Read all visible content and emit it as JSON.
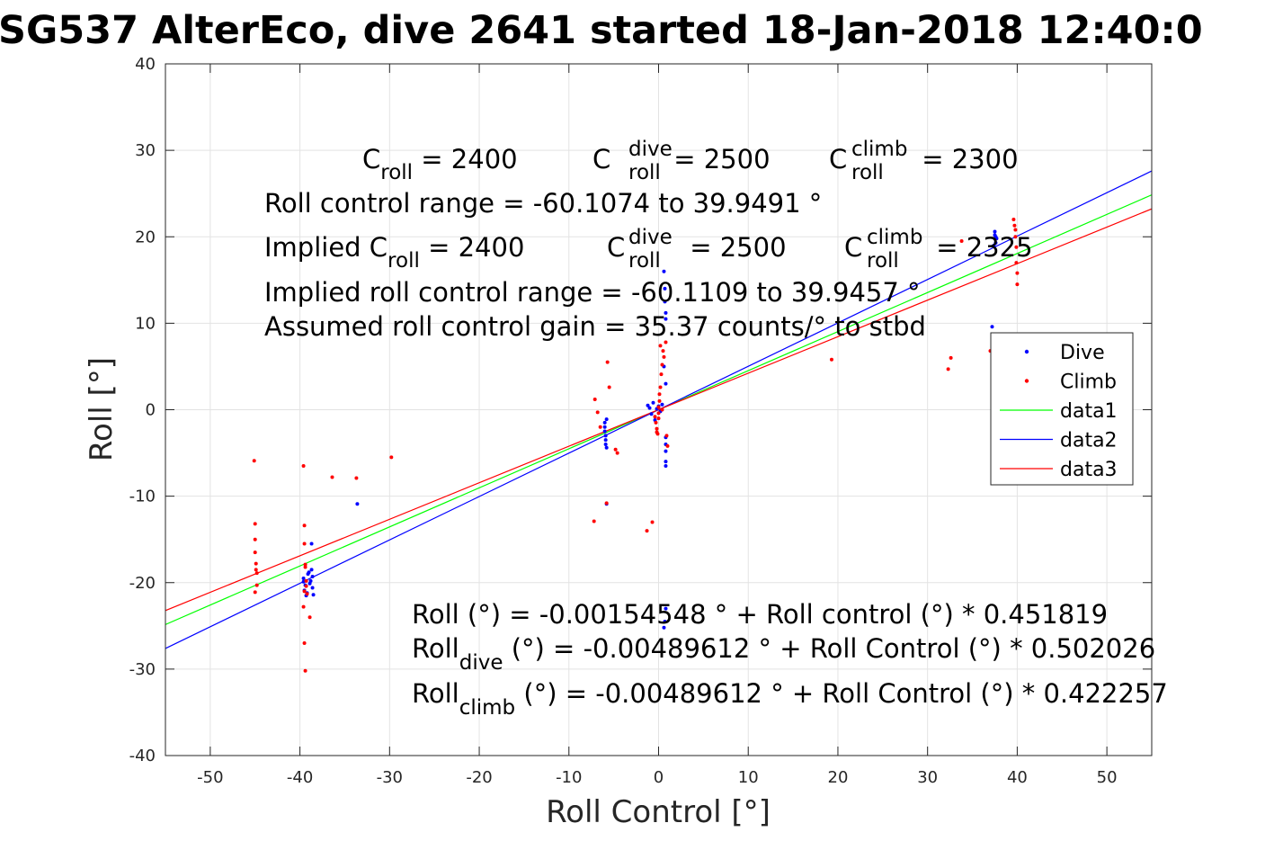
{
  "chart_data": {
    "type": "scatter",
    "title": "SG537 AlterEco, dive 2641 started 18-Jan-2018 12:40:0",
    "xlabel": "Roll Control [°]",
    "ylabel": "Roll [°]",
    "xlim": [
      -55,
      55
    ],
    "ylim": [
      -40,
      40
    ],
    "xticks": [
      -50,
      -40,
      -30,
      -20,
      -10,
      0,
      10,
      20,
      30,
      40,
      50
    ],
    "yticks": [
      -40,
      -30,
      -20,
      -10,
      0,
      10,
      20,
      30,
      40
    ],
    "grid": true,
    "legend_position": "right",
    "series": [
      {
        "name": "Dive",
        "kind": "points",
        "color": "#0000ff",
        "x": [
          -39.6,
          -39.4,
          -39.2,
          -39.0,
          -38.8,
          -38.6,
          -38.5,
          -39.5,
          -39.1,
          -38.7,
          -39.3,
          -38.9,
          -38.6,
          -39.6,
          -38.7,
          -33.6,
          -6.0,
          -6.0,
          -6.0,
          -5.9,
          -5.9,
          -5.9,
          -5.8,
          -5.8,
          -5.8,
          -1.2,
          -1.0,
          -0.8,
          -0.6,
          -0.4,
          -0.2,
          0.0,
          0.2,
          0.4,
          0.6,
          0.6,
          0.7,
          0.7,
          0.8,
          0.8,
          0.8,
          0.8,
          0.8,
          0.8,
          0.8,
          0.8,
          0.6,
          0.7,
          0.8,
          37.2,
          37.5,
          37.6,
          37.7,
          37.5,
          37.4,
          37.6
        ],
        "y": [
          -19.5,
          -20.3,
          -21.2,
          -18.8,
          -19.8,
          -20.6,
          -21.4,
          -20.9,
          -19.0,
          -18.5,
          -21.5,
          -20.1,
          -19.3,
          -19.9,
          -15.5,
          -10.9,
          -1.5,
          -2.0,
          -2.5,
          -3.0,
          -3.5,
          -4.0,
          -4.4,
          -1.1,
          -10.9,
          0.5,
          0.2,
          -0.5,
          0.8,
          -1.2,
          0.1,
          0.4,
          -0.2,
          0.6,
          5.0,
          16.0,
          14.0,
          12.5,
          11.2,
          10.5,
          -3.2,
          -4.0,
          -4.8,
          -6.0,
          -6.5,
          -23.0,
          -25.2,
          -24.5,
          3.0,
          9.6,
          20.2,
          19.3,
          19.8,
          20.6,
          19.0,
          20.0
        ]
      },
      {
        "name": "Climb",
        "kind": "points",
        "color": "#ff0000",
        "x": [
          -45.1,
          -45.0,
          -45.0,
          -45.0,
          -44.9,
          -44.9,
          -44.8,
          -44.8,
          -45.0,
          -39.6,
          -39.5,
          -39.5,
          -39.4,
          -39.4,
          -39.3,
          -39.3,
          -39.2,
          -39.6,
          -39.5,
          -39.4,
          -38.9,
          -39.5,
          -36.4,
          -33.7,
          -29.8,
          -7.1,
          -6.8,
          -6.5,
          -5.7,
          -5.5,
          -4.8,
          -4.6,
          -7.2,
          -5.8,
          -1.3,
          -0.7,
          -0.4,
          -0.3,
          -0.2,
          -0.1,
          0.0,
          0.0,
          0.1,
          0.1,
          0.2,
          0.3,
          0.4,
          0.5,
          0.6,
          0.8,
          0.9,
          1.0,
          0.2,
          0.0,
          -0.2,
          0.4,
          19.3,
          32.3,
          32.6,
          33.8,
          37.0,
          39.6,
          39.7,
          39.8,
          39.8,
          39.9,
          39.9,
          40.0,
          40.0
        ],
        "y": [
          -5.9,
          -13.2,
          -15.0,
          -16.5,
          -17.8,
          -18.5,
          -18.9,
          -20.3,
          -21.1,
          -6.5,
          -13.4,
          -15.5,
          -17.9,
          -18.2,
          -19.8,
          -20.4,
          -21.3,
          -22.8,
          -27.0,
          -30.2,
          -24.0,
          -21.0,
          -7.8,
          -7.9,
          -5.5,
          1.2,
          -0.3,
          -2.0,
          5.5,
          2.6,
          -4.6,
          -5.0,
          -12.9,
          -10.8,
          -14.0,
          -13.0,
          -0.8,
          -1.5,
          -2.2,
          -2.8,
          -0.4,
          0.3,
          1.0,
          1.8,
          2.6,
          4.1,
          5.2,
          6.8,
          6.1,
          7.8,
          -3.0,
          -4.2,
          7.4,
          -1.0,
          -2.6,
          0.0,
          5.8,
          4.7,
          6.0,
          19.5,
          6.8,
          22.0,
          21.3,
          20.8,
          20.0,
          18.8,
          17.0,
          15.8,
          14.5
        ]
      },
      {
        "name": "data1",
        "kind": "line",
        "color": "#00ff00",
        "x": [
          -55,
          55
        ],
        "y": [
          -24.85,
          24.85
        ]
      },
      {
        "name": "data2",
        "kind": "line",
        "color": "#0000ff",
        "x": [
          -55,
          55
        ],
        "y": [
          -27.61,
          27.61
        ]
      },
      {
        "name": "data3",
        "kind": "line",
        "color": "#ff0000",
        "x": [
          -55,
          55
        ],
        "y": [
          -23.23,
          23.23
        ]
      }
    ]
  },
  "annotations": {
    "c_roll": {
      "base": "C",
      "sub": "roll",
      "value": " = 2400"
    },
    "c_roll_dive": {
      "base": "C",
      "sup": "dive",
      "sub": "roll",
      "value": " = 2500"
    },
    "c_roll_climb": {
      "base": "C",
      "sup": "climb",
      "sub": "roll",
      "value": " = 2300"
    },
    "range": "Roll control range = -60.1074 to 39.9491 °",
    "implied_prefix": "Implied C",
    "implied_c_roll": {
      "sub": "roll",
      "value": " = 2400"
    },
    "implied_c_roll_dive": {
      "base": "C",
      "sup": "dive",
      "sub": "roll",
      "value": " = 2500"
    },
    "implied_c_roll_climb": {
      "base": "C",
      "sup": "climb",
      "sub": "roll",
      "value": " = 2325"
    },
    "implied_range": "Implied roll control range = -60.1109 to 39.9457 °",
    "gain": "Assumed roll control gain = 35.37 counts/° to stbd",
    "fit_all": "Roll (°) = -0.00154548 ° + Roll control (°) * 0.451819",
    "fit_dive": {
      "base": "Roll",
      "sub": "dive",
      "rest": " (°) = -0.00489612 ° + Roll Control (°) * 0.502026"
    },
    "fit_climb": {
      "base": "Roll",
      "sub": "climb",
      "rest": " (°) = -0.00489612 ° + Roll Control (°) * 0.422257"
    }
  }
}
